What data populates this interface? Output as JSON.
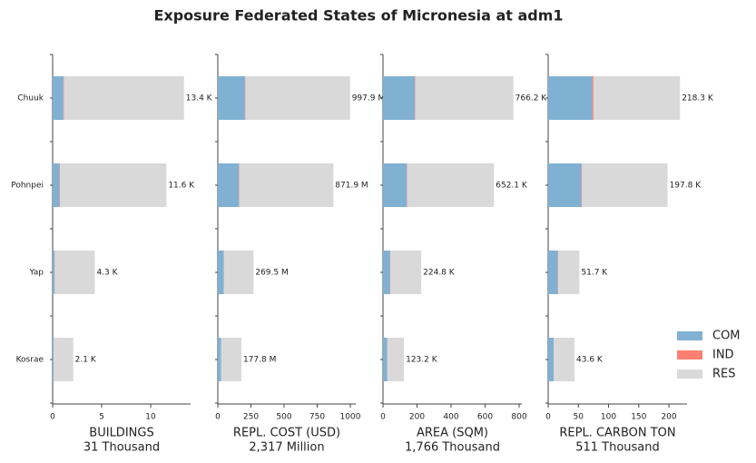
{
  "title": "Exposure Federated States of Micronesia at adm1",
  "categories": [
    "Chuuk",
    "Pohnpei",
    "Yap",
    "Kosrae"
  ],
  "chart_data": [
    {
      "type": "bar",
      "horizontal": true,
      "xlabel": "BUILDINGS",
      "xlabel_sub": "31 Thousand",
      "xlim": [
        0,
        14.07
      ],
      "xticks": [
        0,
        5,
        10
      ],
      "series": [
        {
          "name": "COM",
          "color": "#80b1d3",
          "values": [
            1.1,
            0.7,
            0.2,
            0.1
          ]
        },
        {
          "name": "IND",
          "color": "#fb8072",
          "values": [
            0.05,
            0.05,
            0.02,
            0.01
          ]
        },
        {
          "name": "RES",
          "color": "#d9d9d9",
          "values": [
            12.25,
            10.85,
            4.08,
            1.99
          ]
        }
      ],
      "totals": [
        13.4,
        11.6,
        4.3,
        2.1
      ],
      "total_labels": [
        "13.4 K",
        "11.6 K",
        "4.3 K",
        "2.1 K"
      ]
    },
    {
      "type": "bar",
      "horizontal": true,
      "xlabel": "REPL. COST (USD)",
      "xlabel_sub": "2,317 Million",
      "xlim": [
        0,
        1041
      ],
      "xticks": [
        0,
        250,
        500,
        750,
        1000
      ],
      "series": [
        {
          "name": "COM",
          "color": "#80b1d3",
          "values": [
            205,
            160,
            45,
            25
          ]
        },
        {
          "name": "IND",
          "color": "#fb8072",
          "values": [
            3,
            3,
            1,
            0.5
          ]
        },
        {
          "name": "RES",
          "color": "#d9d9d9",
          "values": [
            789.9,
            708.9,
            223.5,
            152.3
          ]
        }
      ],
      "totals": [
        997.9,
        871.9,
        269.5,
        177.8
      ],
      "total_labels": [
        "997.9 M",
        "871.9 M",
        "269.5 M",
        "177.8 M"
      ]
    },
    {
      "type": "bar",
      "horizontal": true,
      "xlabel": "AREA (SQM)",
      "xlabel_sub": "1,766 Thousand",
      "xlim": [
        0,
        816
      ],
      "xticks": [
        0,
        200,
        400,
        600,
        800
      ],
      "series": [
        {
          "name": "COM",
          "color": "#80b1d3",
          "values": [
            187,
            140,
            42,
            25
          ]
        },
        {
          "name": "IND",
          "color": "#fb8072",
          "values": [
            3,
            3,
            2,
            1
          ]
        },
        {
          "name": "RES",
          "color": "#d9d9d9",
          "values": [
            576.2,
            509.1,
            180.8,
            97.2
          ]
        }
      ],
      "totals": [
        766.2,
        652.1,
        224.8,
        123.2
      ],
      "total_labels": [
        "766.2 K",
        "652.1 K",
        "224.8 K",
        "123.2 K"
      ]
    },
    {
      "type": "bar",
      "horizontal": true,
      "xlabel": "REPL. CARBON TON",
      "xlabel_sub": "511 Thousand",
      "xlim": [
        0,
        230
      ],
      "xticks": [
        0,
        50,
        100,
        150,
        200
      ],
      "series": [
        {
          "name": "COM",
          "color": "#80b1d3",
          "values": [
            73,
            55,
            16,
            9
          ]
        },
        {
          "name": "IND",
          "color": "#fb8072",
          "values": [
            2,
            1,
            0.5,
            0.3
          ]
        },
        {
          "name": "RES",
          "color": "#d9d9d9",
          "values": [
            143.3,
            141.8,
            35.2,
            34.3
          ]
        }
      ],
      "totals": [
        218.3,
        197.8,
        51.7,
        43.6
      ],
      "total_labels": [
        "218.3 K",
        "197.8 K",
        "51.7 K",
        "43.6 K"
      ]
    }
  ]
}
